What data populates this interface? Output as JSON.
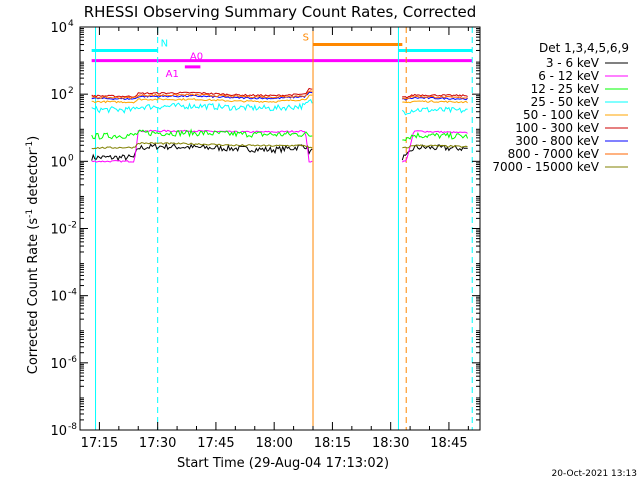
{
  "chart_data": {
    "type": "line",
    "title": "RHESSI Observing Summary Count Rates, Corrected",
    "xlabel": "Start Time (29-Aug-04 17:13:02)",
    "ylabel": "Corrected Count Rate (s⁻¹ detector⁻¹)",
    "ylabel_parts": [
      "Corrected Count Rate (s",
      "-1",
      " detector",
      "-1",
      ")"
    ],
    "y_scale": "log",
    "ylim": [
      1e-08,
      10000
    ],
    "xlim": [
      "17:10",
      "18:53"
    ],
    "x_ticks": [
      "17:15",
      "17:30",
      "17:45",
      "18:00",
      "18:15",
      "18:30",
      "18:45"
    ],
    "y_ticks": [
      {
        "value": 1e-08,
        "base": "10",
        "exp": "-8"
      },
      {
        "value": 1e-06,
        "base": "10",
        "exp": "-6"
      },
      {
        "value": 0.0001,
        "base": "10",
        "exp": "-4"
      },
      {
        "value": 0.01,
        "base": "10",
        "exp": "-2"
      },
      {
        "value": 1,
        "base": "10",
        "exp": "0"
      },
      {
        "value": 100,
        "base": "10",
        "exp": "2"
      },
      {
        "value": 10000,
        "base": "10",
        "exp": "4"
      }
    ],
    "grid": false,
    "legend": {
      "header": "Det 1,3,4,5,6,9",
      "placement": "right",
      "entries": [
        {
          "label": "3 - 6 keV",
          "color": "#000000"
        },
        {
          "label": "6 - 12 keV",
          "color": "#ff00ff"
        },
        {
          "label": "12 - 25 keV",
          "color": "#00ff00"
        },
        {
          "label": "25 - 50 keV",
          "color": "#00ffff"
        },
        {
          "label": "50 - 100 keV",
          "color": "#ffa500"
        },
        {
          "label": "100 - 300 keV",
          "color": "#cc0000"
        },
        {
          "label": "300 - 800 keV",
          "color": "#0000ff"
        },
        {
          "label": "800 - 7000 keV",
          "color": "#ff6600"
        },
        {
          "label": "7000 - 15000 keV",
          "color": "#808000"
        }
      ]
    },
    "gaps": [
      [
        "18:10",
        "18:33"
      ]
    ],
    "series": [
      {
        "name": "3 - 6 keV",
        "color": "#000000",
        "noisy": true,
        "points": [
          [
            "17:13",
            "1.3"
          ],
          [
            "17:24",
            "1.3"
          ],
          [
            "17:25",
            "2.5"
          ],
          [
            "17:30",
            "2.8"
          ],
          [
            "17:40",
            "2.6"
          ],
          [
            "17:50",
            "2.4"
          ],
          [
            "18:00",
            "2.2"
          ],
          [
            "18:05",
            "2.5"
          ],
          [
            "18:08",
            "3"
          ],
          [
            "18:09",
            "2"
          ],
          [
            "18:34",
            "1.3"
          ],
          [
            "18:36",
            "2.6"
          ],
          [
            "18:50",
            "2.4"
          ]
        ]
      },
      {
        "name": "6 - 12 keV",
        "color": "#ff00ff",
        "noisy": false,
        "points": [
          [
            "17:13",
            "1"
          ],
          [
            "17:24",
            "1"
          ],
          [
            "17:25",
            "8"
          ],
          [
            "17:40",
            "8"
          ],
          [
            "17:50",
            "7.5"
          ],
          [
            "18:00",
            "7.5"
          ],
          [
            "18:08",
            "8"
          ],
          [
            "18:09",
            "1"
          ],
          [
            "18:34",
            "1"
          ],
          [
            "18:36",
            "8"
          ],
          [
            "18:50",
            "7"
          ]
        ]
      },
      {
        "name": "12 - 25 keV",
        "color": "#00ff00",
        "noisy": true,
        "points": [
          [
            "17:13",
            "5.5"
          ],
          [
            "17:24",
            "6"
          ],
          [
            "17:25",
            "7"
          ],
          [
            "17:40",
            "7"
          ],
          [
            "17:50",
            "6.5"
          ],
          [
            "18:00",
            "6.3"
          ],
          [
            "18:08",
            "6.5"
          ],
          [
            "18:09",
            "6"
          ],
          [
            "18:34",
            "5"
          ],
          [
            "18:36",
            "6"
          ],
          [
            "18:50",
            "5.5"
          ]
        ]
      },
      {
        "name": "25 - 50 keV",
        "color": "#00ffff",
        "noisy": true,
        "points": [
          [
            "17:13",
            "35"
          ],
          [
            "17:24",
            "34"
          ],
          [
            "17:25",
            "42"
          ],
          [
            "17:40",
            "45"
          ],
          [
            "17:50",
            "40"
          ],
          [
            "18:00",
            "38"
          ],
          [
            "18:08",
            "45"
          ],
          [
            "18:09",
            "60"
          ],
          [
            "18:34",
            "30"
          ],
          [
            "18:36",
            "35"
          ],
          [
            "18:50",
            "32"
          ]
        ]
      },
      {
        "name": "50 - 100 keV",
        "color": "#ffa500",
        "noisy": false,
        "points": [
          [
            "17:13",
            "60"
          ],
          [
            "17:24",
            "58"
          ],
          [
            "17:25",
            "70"
          ],
          [
            "17:40",
            "70"
          ],
          [
            "17:50",
            "62"
          ],
          [
            "18:00",
            "60"
          ],
          [
            "18:08",
            "70"
          ],
          [
            "18:09",
            "90"
          ],
          [
            "18:34",
            "55"
          ],
          [
            "18:36",
            "62"
          ],
          [
            "18:50",
            "58"
          ]
        ]
      },
      {
        "name": "100 - 300 keV",
        "color": "#cc0000",
        "noisy": false,
        "points": [
          [
            "17:13",
            "90"
          ],
          [
            "17:24",
            "85"
          ],
          [
            "17:25",
            "105"
          ],
          [
            "17:40",
            "110"
          ],
          [
            "17:50",
            "95"
          ],
          [
            "18:00",
            "90"
          ],
          [
            "18:08",
            "100"
          ],
          [
            "18:09",
            "140"
          ],
          [
            "18:34",
            "80"
          ],
          [
            "18:36",
            "95"
          ],
          [
            "18:50",
            "90"
          ]
        ]
      },
      {
        "name": "300 - 800 keV",
        "color": "#0000ff",
        "noisy": false,
        "points": [
          [
            "17:13",
            "75"
          ],
          [
            "17:24",
            "72"
          ],
          [
            "17:25",
            "85"
          ],
          [
            "17:40",
            "88"
          ],
          [
            "17:50",
            "78"
          ],
          [
            "18:00",
            "75"
          ],
          [
            "18:08",
            "85"
          ],
          [
            "18:09",
            "110"
          ],
          [
            "18:34",
            "70"
          ],
          [
            "18:36",
            "78"
          ],
          [
            "18:50",
            "72"
          ]
        ]
      },
      {
        "name": "800 - 7000 keV",
        "color": "#ff6600",
        "noisy": false,
        "points": [
          [
            "17:13",
            "80"
          ],
          [
            "17:24",
            "78"
          ],
          [
            "17:25",
            "92"
          ],
          [
            "17:40",
            "96"
          ],
          [
            "17:50",
            "85"
          ],
          [
            "18:00",
            "82"
          ],
          [
            "18:08",
            "90"
          ],
          [
            "18:09",
            "120"
          ],
          [
            "18:34",
            "75"
          ],
          [
            "18:36",
            "85"
          ],
          [
            "18:50",
            "78"
          ]
        ]
      },
      {
        "name": "7000 - 15000 keV",
        "color": "#808000",
        "noisy": false,
        "points": [
          [
            "17:13",
            "2.5"
          ],
          [
            "17:24",
            "2.6"
          ],
          [
            "17:25",
            "3.5"
          ],
          [
            "17:40",
            "3.3"
          ],
          [
            "17:50",
            "3"
          ],
          [
            "18:00",
            "2.9"
          ],
          [
            "18:08",
            "3"
          ],
          [
            "18:09",
            "2.5"
          ],
          [
            "18:34",
            "2.5"
          ],
          [
            "18:36",
            "3"
          ],
          [
            "18:50",
            "2.7"
          ]
        ]
      }
    ],
    "flags": [
      {
        "label": "N",
        "color": "#00ffff",
        "y": 2000,
        "segments": [
          [
            "17:13",
            "17:30"
          ],
          [
            "18:32",
            "18:51"
          ]
        ]
      },
      {
        "label": "S",
        "color": "#ff8800",
        "y": 3000,
        "segments": [
          [
            "18:10",
            "18:33"
          ]
        ]
      },
      {
        "label": "A0",
        "color": "#ff00ff",
        "y": 1000,
        "segments": [
          [
            "17:13",
            "18:51"
          ]
        ]
      },
      {
        "label": "A1",
        "color": "#ff00ff",
        "y": 650,
        "segments": [
          [
            "17:37",
            "17:41"
          ]
        ]
      }
    ],
    "verticals": [
      {
        "time": "17:14",
        "color": "#00ffff",
        "style": "solid"
      },
      {
        "time": "17:30",
        "color": "#00ffff",
        "style": "dashed"
      },
      {
        "time": "18:10",
        "color": "#ff8800",
        "style": "solid"
      },
      {
        "time": "18:32",
        "color": "#00ffff",
        "style": "solid"
      },
      {
        "time": "18:34",
        "color": "#ff8800",
        "style": "dashed"
      },
      {
        "time": "18:51",
        "color": "#00ffff",
        "style": "dashed"
      }
    ]
  },
  "footer": {
    "timestamp": "20-Oct-2021 13:13"
  }
}
